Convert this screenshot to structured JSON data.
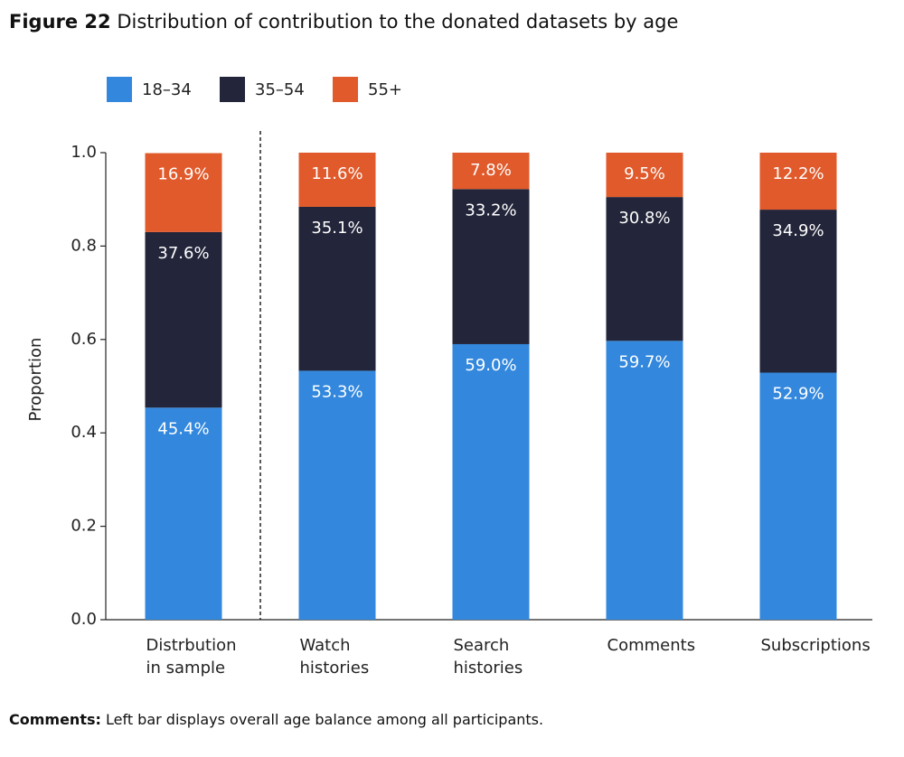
{
  "figure_label": "Figure 22",
  "comments_label": "Comments:",
  "comments": "Left bar displays overall age balance among all participants.",
  "chart_data": {
    "type": "stacked-bar",
    "title": "Distribution of contribution to the donated datasets by age",
    "y_label": "Proportion",
    "categories": [
      "Distrbution in sample",
      "Watch histories",
      "Search histories",
      "Comments",
      "Subscriptions"
    ],
    "series": [
      {
        "name": "18–34",
        "color": "#3388dd",
        "values": [
          0.454,
          0.533,
          0.59,
          0.597,
          0.529
        ],
        "value_labels": [
          "45.4%",
          "53.3%",
          "59.0%",
          "59.7%",
          "52.9%"
        ]
      },
      {
        "name": "35–54",
        "color": "#23253a",
        "values": [
          0.376,
          0.351,
          0.332,
          0.308,
          0.349
        ],
        "value_labels": [
          "37.6%",
          "35.1%",
          "33.2%",
          "30.8%",
          "34.9%"
        ]
      },
      {
        "name": "55+",
        "color": "#e05a2b",
        "values": [
          0.169,
          0.116,
          0.078,
          0.095,
          0.122
        ],
        "value_labels": [
          "16.9%",
          "11.6%",
          "7.8%",
          "9.5%",
          "12.2%"
        ]
      }
    ],
    "ylim": [
      0,
      1
    ],
    "yticks": [
      {
        "value": 0,
        "label": "0.0"
      },
      0.2,
      0.4,
      0.6,
      0.8,
      {
        "value": 1,
        "label": "1.0"
      }
    ],
    "legend": "top-left"
  }
}
